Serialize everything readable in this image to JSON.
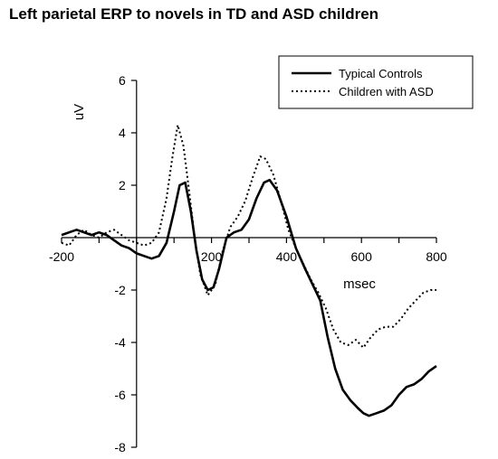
{
  "chart_data": {
    "type": "line",
    "title": "Left parietal ERP to novels in TD and ASD children",
    "xlabel": "msec",
    "ylabel": "uV",
    "xlim": [
      -200,
      800
    ],
    "ylim": [
      -8,
      6
    ],
    "x_ticks": [
      "-200",
      "200",
      "400",
      "600",
      "800"
    ],
    "y_ticks": [
      "6",
      "4",
      "2",
      "-2",
      "-4",
      "-6",
      "-8"
    ],
    "grid": false,
    "legend_position": "top-right",
    "series": [
      {
        "name": "Typical Controls",
        "style": "solid",
        "color": "#000000",
        "points": [
          [
            -200,
            0.1
          ],
          [
            -180,
            0.2
          ],
          [
            -160,
            0.3
          ],
          [
            -140,
            0.2
          ],
          [
            -120,
            0.1
          ],
          [
            -100,
            0.2
          ],
          [
            -80,
            0.1
          ],
          [
            -60,
            -0.1
          ],
          [
            -40,
            -0.3
          ],
          [
            -20,
            -0.4
          ],
          [
            0,
            -0.6
          ],
          [
            20,
            -0.7
          ],
          [
            40,
            -0.8
          ],
          [
            60,
            -0.7
          ],
          [
            80,
            -0.2
          ],
          [
            100,
            1.0
          ],
          [
            115,
            2.0
          ],
          [
            130,
            2.1
          ],
          [
            145,
            1.0
          ],
          [
            160,
            -0.5
          ],
          [
            175,
            -1.6
          ],
          [
            190,
            -2.0
          ],
          [
            205,
            -1.9
          ],
          [
            220,
            -1.2
          ],
          [
            240,
            0.0
          ],
          [
            260,
            0.2
          ],
          [
            280,
            0.3
          ],
          [
            300,
            0.7
          ],
          [
            320,
            1.5
          ],
          [
            340,
            2.1
          ],
          [
            355,
            2.2
          ],
          [
            375,
            1.8
          ],
          [
            400,
            0.8
          ],
          [
            425,
            -0.4
          ],
          [
            450,
            -1.2
          ],
          [
            470,
            -1.8
          ],
          [
            490,
            -2.4
          ],
          [
            510,
            -3.8
          ],
          [
            530,
            -5.0
          ],
          [
            550,
            -5.8
          ],
          [
            570,
            -6.2
          ],
          [
            590,
            -6.5
          ],
          [
            605,
            -6.7
          ],
          [
            620,
            -6.8
          ],
          [
            640,
            -6.7
          ],
          [
            660,
            -6.6
          ],
          [
            680,
            -6.4
          ],
          [
            700,
            -6.0
          ],
          [
            720,
            -5.7
          ],
          [
            740,
            -5.6
          ],
          [
            760,
            -5.4
          ],
          [
            780,
            -5.1
          ],
          [
            800,
            -4.9
          ]
        ]
      },
      {
        "name": "Children with ASD",
        "style": "dotted",
        "color": "#000000",
        "points": [
          [
            -200,
            -0.2
          ],
          [
            -180,
            -0.3
          ],
          [
            -160,
            0.1
          ],
          [
            -140,
            0.3
          ],
          [
            -120,
            0.1
          ],
          [
            -100,
            0.0
          ],
          [
            -80,
            0.2
          ],
          [
            -60,
            0.3
          ],
          [
            -40,
            0.1
          ],
          [
            -20,
            -0.1
          ],
          [
            0,
            -0.2
          ],
          [
            20,
            -0.3
          ],
          [
            40,
            -0.2
          ],
          [
            60,
            0.2
          ],
          [
            80,
            1.5
          ],
          [
            95,
            3.0
          ],
          [
            110,
            4.3
          ],
          [
            125,
            3.5
          ],
          [
            140,
            1.8
          ],
          [
            155,
            0.0
          ],
          [
            170,
            -1.4
          ],
          [
            190,
            -2.2
          ],
          [
            210,
            -1.8
          ],
          [
            230,
            -0.5
          ],
          [
            250,
            0.4
          ],
          [
            270,
            0.8
          ],
          [
            290,
            1.4
          ],
          [
            310,
            2.3
          ],
          [
            330,
            3.1
          ],
          [
            345,
            3.0
          ],
          [
            365,
            2.4
          ],
          [
            385,
            1.4
          ],
          [
            405,
            0.3
          ],
          [
            425,
            -0.4
          ],
          [
            445,
            -1.0
          ],
          [
            465,
            -1.6
          ],
          [
            485,
            -2.1
          ],
          [
            505,
            -2.7
          ],
          [
            525,
            -3.5
          ],
          [
            545,
            -4.0
          ],
          [
            565,
            -4.1
          ],
          [
            585,
            -3.9
          ],
          [
            605,
            -4.2
          ],
          [
            625,
            -3.8
          ],
          [
            645,
            -3.5
          ],
          [
            665,
            -3.4
          ],
          [
            685,
            -3.4
          ],
          [
            705,
            -3.1
          ],
          [
            725,
            -2.7
          ],
          [
            745,
            -2.4
          ],
          [
            765,
            -2.1
          ],
          [
            785,
            -2.0
          ],
          [
            800,
            -2.0
          ]
        ]
      }
    ]
  }
}
